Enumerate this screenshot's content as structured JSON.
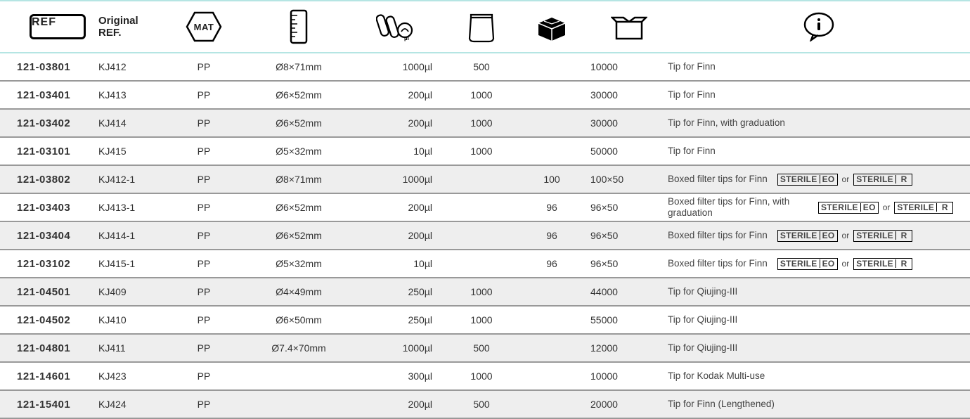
{
  "header": {
    "ref_label": "REF",
    "oref_label": "Original\nREF.",
    "mat_label": "MAT"
  },
  "rows": [
    {
      "ref": "121-03801",
      "oref": "KJ412",
      "mat": "PP",
      "size": "Ø8×71mm",
      "vol": "1000µl",
      "bag": "500",
      "box": "",
      "case": "10000",
      "info": "Tip for Finn",
      "sterile": false,
      "alt": false
    },
    {
      "ref": "121-03401",
      "oref": "KJ413",
      "mat": "PP",
      "size": "Ø6×52mm",
      "vol": "200µl",
      "bag": "1000",
      "box": "",
      "case": "30000",
      "info": "Tip for Finn",
      "sterile": false,
      "alt": false
    },
    {
      "ref": "121-03402",
      "oref": "KJ414",
      "mat": "PP",
      "size": "Ø6×52mm",
      "vol": "200µl",
      "bag": "1000",
      "box": "",
      "case": "30000",
      "info": "Tip for Finn, with graduation",
      "sterile": false,
      "alt": true
    },
    {
      "ref": "121-03101",
      "oref": "KJ415",
      "mat": "PP",
      "size": "Ø5×32mm",
      "vol": "10µl",
      "bag": "1000",
      "box": "",
      "case": "50000",
      "info": "Tip for Finn",
      "sterile": false,
      "alt": false
    },
    {
      "ref": "121-03802",
      "oref": "KJ412-1",
      "mat": "PP",
      "size": "Ø8×71mm",
      "vol": "1000µl",
      "bag": "",
      "box": "100",
      "case": "100×50",
      "info": "Boxed filter tips for Finn",
      "sterile": true,
      "alt": true
    },
    {
      "ref": "121-03403",
      "oref": "KJ413-1",
      "mat": "PP",
      "size": "Ø6×52mm",
      "vol": "200µl",
      "bag": "",
      "box": "96",
      "case": "96×50",
      "info": "Boxed filter tips for Finn, with graduation",
      "sterile": true,
      "alt": false
    },
    {
      "ref": "121-03404",
      "oref": "KJ414-1",
      "mat": "PP",
      "size": "Ø6×52mm",
      "vol": "200µl",
      "bag": "",
      "box": "96",
      "case": "96×50",
      "info": "Boxed filter tips for Finn",
      "sterile": true,
      "alt": true
    },
    {
      "ref": "121-03102",
      "oref": "KJ415-1",
      "mat": "PP",
      "size": "Ø5×32mm",
      "vol": "10µl",
      "bag": "",
      "box": "96",
      "case": "96×50",
      "info": "Boxed filter tips for Finn",
      "sterile": true,
      "alt": false
    },
    {
      "ref": "121-04501",
      "oref": "KJ409",
      "mat": "PP",
      "size": "Ø4×49mm",
      "vol": "250µl",
      "bag": "1000",
      "box": "",
      "case": "44000",
      "info": "Tip for Qiujing-III",
      "sterile": false,
      "alt": true
    },
    {
      "ref": "121-04502",
      "oref": "KJ410",
      "mat": "PP",
      "size": "Ø6×50mm",
      "vol": "250µl",
      "bag": "1000",
      "box": "",
      "case": "55000",
      "info": "Tip for Qiujing-III",
      "sterile": false,
      "alt": false
    },
    {
      "ref": "121-04801",
      "oref": "KJ411",
      "mat": "PP",
      "size": "Ø7.4×70mm",
      "vol": "1000µl",
      "bag": "500",
      "box": "",
      "case": "12000",
      "info": "Tip for Qiujing-III",
      "sterile": false,
      "alt": true
    },
    {
      "ref": "121-14601",
      "oref": "KJ423",
      "mat": "PP",
      "size": "",
      "vol": "300µl",
      "bag": "1000",
      "box": "",
      "case": "10000",
      "info": "Tip for Kodak Multi-use",
      "sterile": false,
      "alt": false
    },
    {
      "ref": "121-15401",
      "oref": "KJ424",
      "mat": "PP",
      "size": "",
      "vol": "200µl",
      "bag": "500",
      "box": "",
      "case": "20000",
      "info": "Tip for Finn (Lengthened)",
      "sterile": false,
      "alt": true
    }
  ],
  "sterile_badge": {
    "text": "STERILE",
    "eo": "EO",
    "r": "R",
    "or": "or"
  },
  "colors": {
    "header_border": "#b5e5e3",
    "row_border": "#999999",
    "alt_bg": "#eeeeee",
    "text": "#333333"
  }
}
